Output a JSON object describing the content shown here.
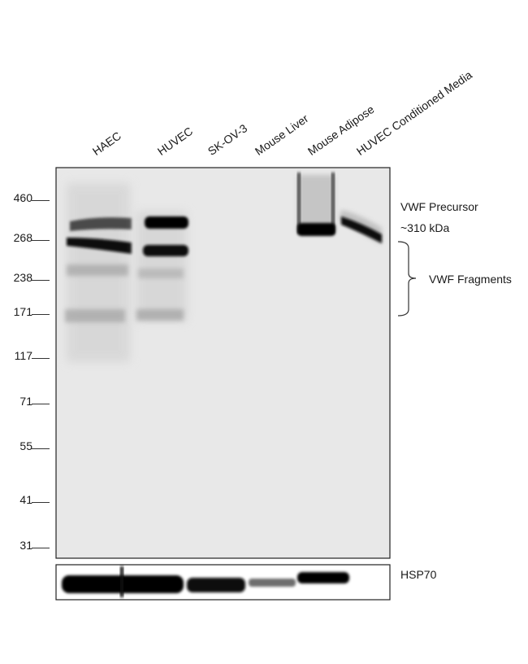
{
  "lanes": [
    "HAEC",
    "HUVEC",
    "SK-OV-3",
    "Mouse Liver",
    "Mouse  Adipose",
    "HUVEC Conditioned Media"
  ],
  "markers": [
    "460",
    "268",
    "238",
    "171",
    "117",
    "71",
    "55",
    "41",
    "31"
  ],
  "annotations": {
    "precursor_line1": "VWF Precursor",
    "precursor_line2": "~310 kDa",
    "fragments": "VWF Fragments"
  },
  "loading_control": "HSP70"
}
